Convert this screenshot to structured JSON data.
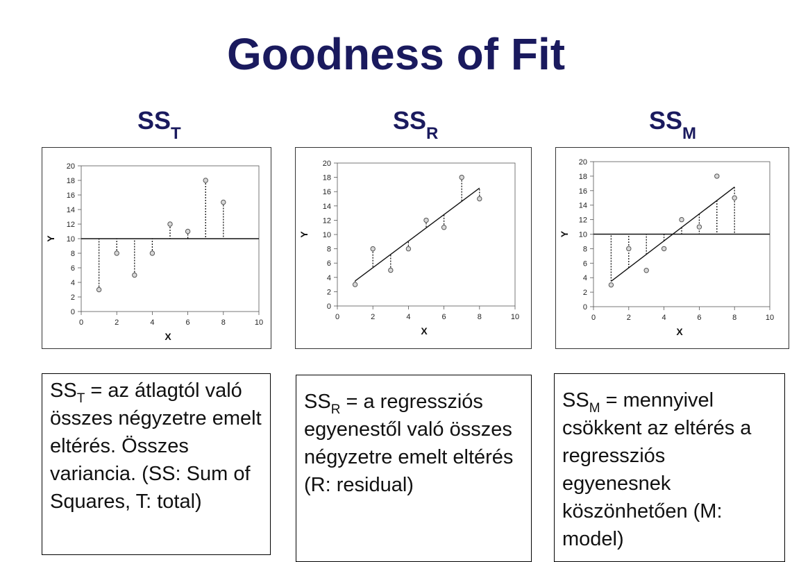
{
  "slide": {
    "title": "Goodness of Fit",
    "panels": [
      {
        "label_main": "SS",
        "label_sub": "T"
      },
      {
        "label_main": "SS",
        "label_sub": "R"
      },
      {
        "label_main": "SS",
        "label_sub": "M"
      }
    ],
    "descriptions": [
      {
        "main": "SS",
        "sub": "T",
        "text": " = az átlagtól való összes négyzetre emelt eltérés. Összes variancia. (SS: Sum of Squares, T: total)"
      },
      {
        "main": "SS",
        "sub": "R",
        "text": " = a regressziós egyenestől való összes négyzetre emelt eltérés  (R: residual)"
      },
      {
        "main": "SS",
        "sub": "M",
        "text": " = mennyivel csökkent az eltérés a regressziós egyenesnek köszönhetően (M: model)"
      }
    ]
  },
  "chart_data": [
    {
      "type": "scatter",
      "title": "",
      "xlabel": "X",
      "ylabel": "Y",
      "xlim": [
        0,
        10
      ],
      "ylim": [
        0,
        20
      ],
      "xticks": [
        0,
        2,
        4,
        6,
        8,
        10
      ],
      "yticks": [
        0,
        2,
        4,
        6,
        8,
        10,
        12,
        14,
        16,
        18,
        20
      ],
      "points": {
        "x": [
          1,
          2,
          3,
          4,
          5,
          6,
          7,
          8
        ],
        "y": [
          3,
          8,
          5,
          8,
          12,
          11,
          18,
          15
        ]
      },
      "mean_line": 10,
      "residuals_to": "mean",
      "grid": false
    },
    {
      "type": "scatter",
      "title": "",
      "xlabel": "X",
      "ylabel": "Y",
      "xlim": [
        0,
        10
      ],
      "ylim": [
        0,
        20
      ],
      "xticks": [
        0,
        2,
        4,
        6,
        8,
        10
      ],
      "yticks": [
        0,
        2,
        4,
        6,
        8,
        10,
        12,
        14,
        16,
        18,
        20
      ],
      "points": {
        "x": [
          1,
          2,
          3,
          4,
          5,
          6,
          7,
          8
        ],
        "y": [
          3,
          8,
          5,
          8,
          12,
          11,
          18,
          15
        ]
      },
      "regression_line": {
        "x": [
          1,
          8
        ],
        "y": [
          3.5,
          16.5
        ]
      },
      "residuals_to": "regression",
      "grid": false
    },
    {
      "type": "scatter",
      "title": "",
      "xlabel": "X",
      "ylabel": "Y",
      "xlim": [
        0,
        10
      ],
      "ylim": [
        0,
        20
      ],
      "xticks": [
        0,
        2,
        4,
        6,
        8,
        10
      ],
      "yticks": [
        0,
        2,
        4,
        6,
        8,
        10,
        12,
        14,
        16,
        18,
        20
      ],
      "points": {
        "x": [
          1,
          2,
          3,
          4,
          5,
          6,
          7,
          8
        ],
        "y": [
          3,
          8,
          5,
          8,
          12,
          11,
          18,
          15
        ]
      },
      "mean_line": 10,
      "regression_line": {
        "x": [
          1,
          8
        ],
        "y": [
          3.5,
          16.5
        ]
      },
      "residuals_to": "model",
      "grid": false
    }
  ]
}
